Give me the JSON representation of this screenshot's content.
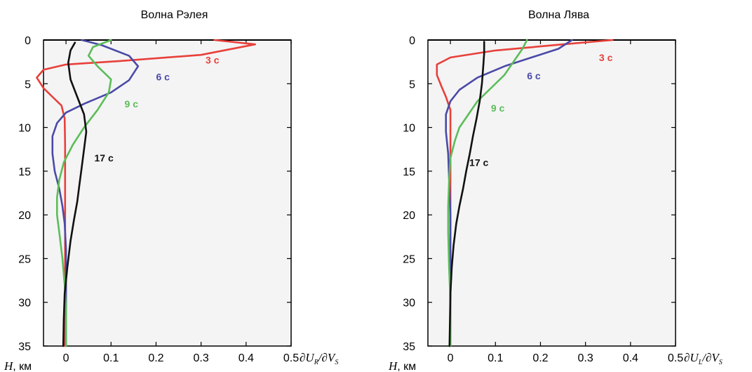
{
  "chart_data": [
    {
      "type": "line",
      "title": "Волна Рэлея",
      "xlabel_main": "∂U",
      "xlabel_sub1": "R",
      "xlabel_mid": "/∂V",
      "xlabel_sub2": "S",
      "ylabel_main": "H",
      "ylabel_unit": ", км",
      "xlim": [
        -0.05,
        0.5
      ],
      "ylim": [
        35,
        0
      ],
      "y_inverted": true,
      "xticks": [
        0,
        0.1,
        0.2,
        0.3,
        0.4,
        0.5
      ],
      "xtick_labels": [
        "0",
        "0.1",
        "0.2",
        "0.3",
        "0.4",
        "0.5"
      ],
      "yticks": [
        0,
        5,
        10,
        15,
        20,
        25,
        30,
        35
      ],
      "ytick_labels": [
        "0",
        "5",
        "10",
        "15",
        "20",
        "25",
        "30",
        "35"
      ],
      "grid": false,
      "series": [
        {
          "name": "3 c",
          "color": "#e8403a",
          "points": [
            [
              0.33,
              0
            ],
            [
              0.42,
              0.5
            ],
            [
              0.3,
              1.7
            ],
            [
              0.12,
              2.4
            ],
            [
              0.0,
              2.8
            ],
            [
              -0.05,
              3.4
            ],
            [
              -0.065,
              4.3
            ],
            [
              -0.05,
              5.5
            ],
            [
              -0.03,
              6.5
            ],
            [
              -0.01,
              7.5
            ],
            [
              -0.003,
              9
            ],
            [
              -0.002,
              12
            ],
            [
              -0.002,
              20
            ],
            [
              -0.002,
              30
            ],
            [
              -0.002,
              35
            ]
          ],
          "label_value": [
            0.31,
            2.3
          ]
        },
        {
          "name": "6 c",
          "color": "#4a4aa8",
          "points": [
            [
              0.035,
              0
            ],
            [
              0.08,
              0.6
            ],
            [
              0.14,
              1.8
            ],
            [
              0.16,
              3.0
            ],
            [
              0.14,
              4.6
            ],
            [
              0.1,
              6.0
            ],
            [
              0.04,
              7.3
            ],
            [
              0.0,
              8.3
            ],
            [
              -0.02,
              9.5
            ],
            [
              -0.03,
              11
            ],
            [
              -0.03,
              13
            ],
            [
              -0.025,
              15
            ],
            [
              -0.015,
              17
            ],
            [
              -0.008,
              19
            ],
            [
              -0.003,
              21
            ],
            [
              0.0,
              24
            ],
            [
              0.0,
              30
            ],
            [
              0.0,
              35
            ]
          ],
          "label_value": [
            0.2,
            4.2
          ]
        },
        {
          "name": "9 c",
          "color": "#5cbd5a",
          "points": [
            [
              0.1,
              0
            ],
            [
              0.06,
              0.8
            ],
            [
              0.05,
              1.8
            ],
            [
              0.07,
              3.0
            ],
            [
              0.1,
              4.5
            ],
            [
              0.095,
              6.0
            ],
            [
              0.07,
              8.0
            ],
            [
              0.04,
              10.0
            ],
            [
              0.015,
              12.0
            ],
            [
              -0.005,
              14.0
            ],
            [
              -0.015,
              16
            ],
            [
              -0.02,
              18
            ],
            [
              -0.02,
              20
            ],
            [
              -0.015,
              22
            ],
            [
              -0.008,
              25
            ],
            [
              -0.003,
              28
            ],
            [
              0.0,
              31
            ],
            [
              0.0,
              35
            ]
          ],
          "label_value": [
            0.13,
            7.3
          ]
        },
        {
          "name": "17 c",
          "color": "#111111",
          "points": [
            [
              0.02,
              0.3
            ],
            [
              0.01,
              1.2
            ],
            [
              0.005,
              2.6
            ],
            [
              0.01,
              4.5
            ],
            [
              0.025,
              6.5
            ],
            [
              0.04,
              8.5
            ],
            [
              0.045,
              10.5
            ],
            [
              0.04,
              12.5
            ],
            [
              0.035,
              14.5
            ],
            [
              0.03,
              16.5
            ],
            [
              0.025,
              18.5
            ],
            [
              0.018,
              20.5
            ],
            [
              0.01,
              23.0
            ],
            [
              0.003,
              26.0
            ],
            [
              -0.003,
              29.0
            ],
            [
              -0.005,
              32.0
            ],
            [
              -0.006,
              35
            ]
          ],
          "label_value": [
            0.063,
            13.5
          ]
        }
      ]
    },
    {
      "type": "line",
      "title": "Волна Лява",
      "xlabel_main": "∂U",
      "xlabel_sub1": "L",
      "xlabel_mid": "/∂V",
      "xlabel_sub2": "S",
      "ylabel_main": "H",
      "ylabel_unit": ", км",
      "xlim": [
        -0.05,
        0.5
      ],
      "ylim": [
        35,
        0
      ],
      "y_inverted": true,
      "xticks": [
        0,
        0.1,
        0.2,
        0.3,
        0.4,
        0.5
      ],
      "xtick_labels": [
        "0",
        "0.1",
        "0.2",
        "0.3",
        "0.4",
        "0.5"
      ],
      "yticks": [
        0,
        5,
        10,
        15,
        20,
        25,
        30,
        35
      ],
      "ytick_labels": [
        "0",
        "5",
        "10",
        "15",
        "20",
        "25",
        "30",
        "35"
      ],
      "grid": false,
      "series": [
        {
          "name": "3 c",
          "color": "#e8403a",
          "points": [
            [
              0.36,
              0
            ],
            [
              0.25,
              0.5
            ],
            [
              0.1,
              1.2
            ],
            [
              0.0,
              2.0
            ],
            [
              -0.03,
              2.8
            ],
            [
              -0.03,
              4.0
            ],
            [
              -0.02,
              5.3
            ],
            [
              -0.01,
              6.5
            ],
            [
              0.0,
              8.0
            ],
            [
              0.0,
              12
            ],
            [
              0.0,
              20
            ],
            [
              0.0,
              30
            ],
            [
              0.0,
              35
            ]
          ],
          "label_value": [
            0.33,
            2.0
          ]
        },
        {
          "name": "6 c",
          "color": "#4a4aa8",
          "points": [
            [
              0.27,
              0
            ],
            [
              0.24,
              1.0
            ],
            [
              0.18,
              2.0
            ],
            [
              0.12,
              3.0
            ],
            [
              0.06,
              4.3
            ],
            [
              0.02,
              5.7
            ],
            [
              0.0,
              7.0
            ],
            [
              -0.01,
              8.5
            ],
            [
              -0.01,
              10.5
            ],
            [
              -0.005,
              13
            ],
            [
              -0.003,
              16
            ],
            [
              0.0,
              20
            ],
            [
              0.0,
              25
            ],
            [
              0.0,
              35
            ]
          ],
          "label_value": [
            0.17,
            4.1
          ]
        },
        {
          "name": "9 c",
          "color": "#5cbd5a",
          "points": [
            [
              0.17,
              0
            ],
            [
              0.16,
              1.0
            ],
            [
              0.14,
              2.5
            ],
            [
              0.12,
              4.0
            ],
            [
              0.09,
              5.5
            ],
            [
              0.06,
              7.0
            ],
            [
              0.04,
              8.5
            ],
            [
              0.02,
              10.0
            ],
            [
              0.01,
              11.5
            ],
            [
              0.0,
              13.5
            ],
            [
              -0.003,
              16
            ],
            [
              -0.005,
              19
            ],
            [
              -0.005,
              22
            ],
            [
              -0.003,
              26
            ],
            [
              0.0,
              30
            ],
            [
              0.0,
              35
            ]
          ],
          "label_value": [
            0.09,
            7.8
          ]
        },
        {
          "name": "17 c",
          "color": "#111111",
          "points": [
            [
              0.075,
              0.2
            ],
            [
              0.075,
              1.5
            ],
            [
              0.073,
              3.0
            ],
            [
              0.07,
              5.0
            ],
            [
              0.065,
              7.0
            ],
            [
              0.058,
              9.0
            ],
            [
              0.05,
              11.0
            ],
            [
              0.043,
              13.0
            ],
            [
              0.035,
              15.0
            ],
            [
              0.028,
              17.0
            ],
            [
              0.02,
              19.0
            ],
            [
              0.013,
              21.0
            ],
            [
              0.007,
              23.5
            ],
            [
              0.003,
              26.0
            ],
            [
              0.0,
              29.0
            ],
            [
              -0.002,
              35
            ]
          ],
          "label_value": [
            0.042,
            14.0
          ]
        }
      ]
    }
  ]
}
